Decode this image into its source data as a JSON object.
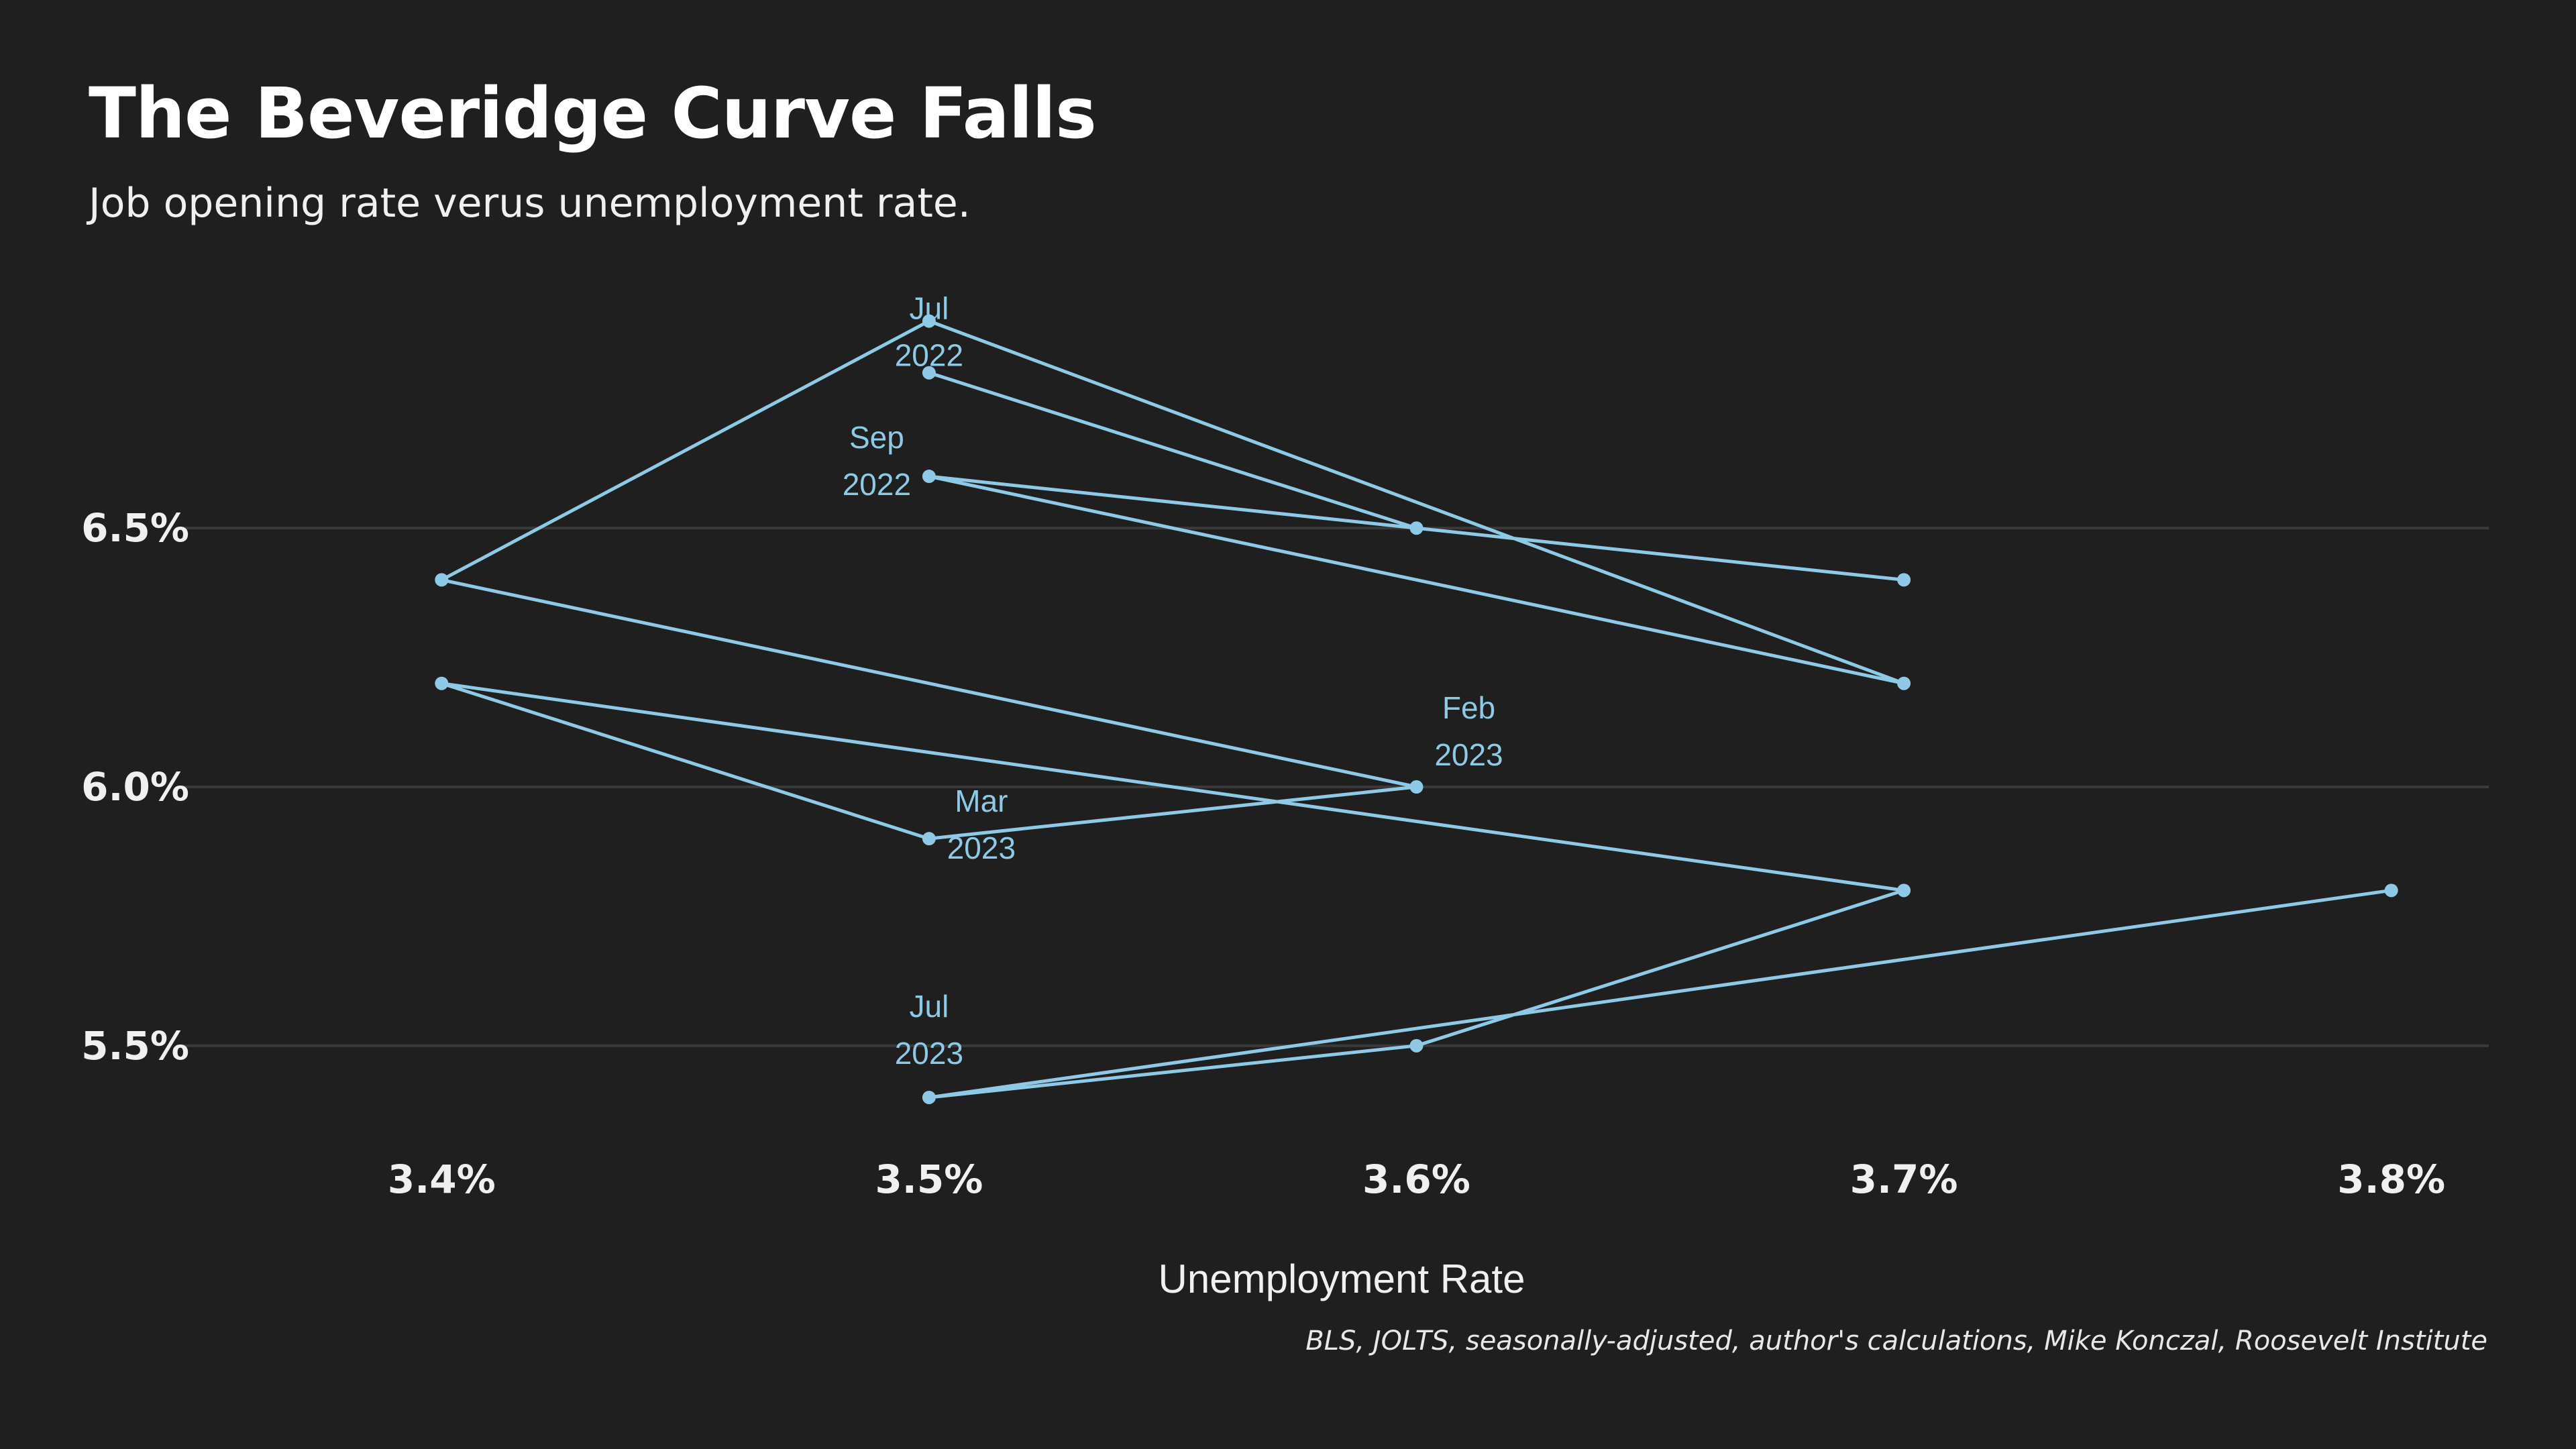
{
  "chart_data": {
    "type": "line",
    "title": "The Beveridge Curve Falls",
    "subtitle": "Job opening rate verus unemployment rate.",
    "xlabel": "Unemployment Rate",
    "ylabel": "",
    "caption": "BLS, JOLTS, seasonally-adjusted, author's calculations, Mike Konczal, Roosevelt Institute",
    "xlim": [
      3.35,
      3.82
    ],
    "ylim": [
      5.33,
      6.95
    ],
    "x_ticks": [
      3.4,
      3.5,
      3.6,
      3.7,
      3.8
    ],
    "x_tick_labels": [
      "3.4%",
      "3.5%",
      "3.6%",
      "3.7%",
      "3.8%"
    ],
    "y_ticks": [
      5.5,
      6.0,
      6.5
    ],
    "y_tick_labels": [
      "5.5%",
      "6.0%",
      "6.5%"
    ],
    "grid": "horizontal",
    "colors": {
      "background": "#1f1f1f",
      "line": "#8ecae6",
      "grid": "#3a3a3a",
      "label": "#8ecae6"
    },
    "series": [
      {
        "points": [
          {
            "x": 3.5,
            "y": 6.8,
            "label": [
              "Jul",
              "2022"
            ]
          },
          {
            "x": 3.6,
            "y": 6.5
          },
          {
            "x": 3.7,
            "y": 6.4
          },
          {
            "x": 3.5,
            "y": 6.6,
            "label": [
              "Sep",
              "2022"
            ]
          },
          {
            "x": 3.7,
            "y": 6.2
          },
          {
            "x": 3.5,
            "y": 6.9
          },
          {
            "x": 3.4,
            "y": 6.4
          },
          {
            "x": 3.6,
            "y": 6.0,
            "label": [
              "Feb",
              "2023"
            ]
          },
          {
            "x": 3.5,
            "y": 5.9,
            "label": [
              "Mar",
              "2023"
            ]
          },
          {
            "x": 3.4,
            "y": 6.2
          },
          {
            "x": 3.7,
            "y": 5.8
          },
          {
            "x": 3.6,
            "y": 5.5
          },
          {
            "x": 3.5,
            "y": 5.4,
            "label": [
              "Jul",
              "2023"
            ]
          },
          {
            "x": 3.8,
            "y": 5.8
          }
        ]
      }
    ]
  }
}
